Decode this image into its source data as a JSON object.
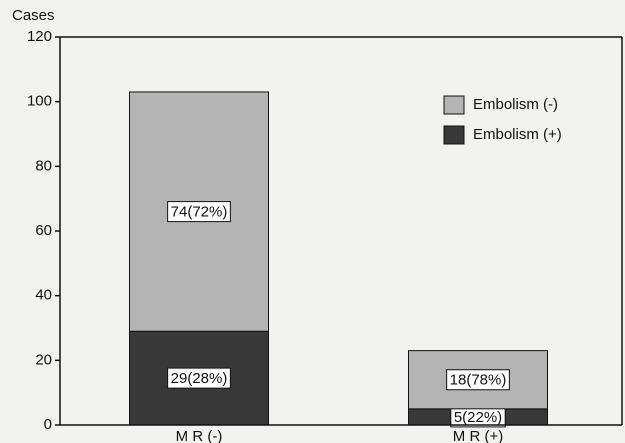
{
  "chart_data": {
    "type": "stacked_bar",
    "y_label": "Cases",
    "categories": [
      "M R  (-)",
      "M R  (+)"
    ],
    "series": [
      {
        "name": "Embolism  (-)",
        "color": "#b4b4b4",
        "values": [
          74,
          18
        ],
        "value_labels": [
          "74(72%)",
          "18(78%)"
        ]
      },
      {
        "name": "Embolism  (+)",
        "color": "#383838",
        "values": [
          29,
          5
        ],
        "value_labels": [
          "29(28%)",
          "5(22%)"
        ]
      }
    ],
    "ylim": [
      0,
      120
    ],
    "yticks": [
      0,
      20,
      40,
      60,
      80,
      100,
      120
    ],
    "legend": "upper right"
  }
}
